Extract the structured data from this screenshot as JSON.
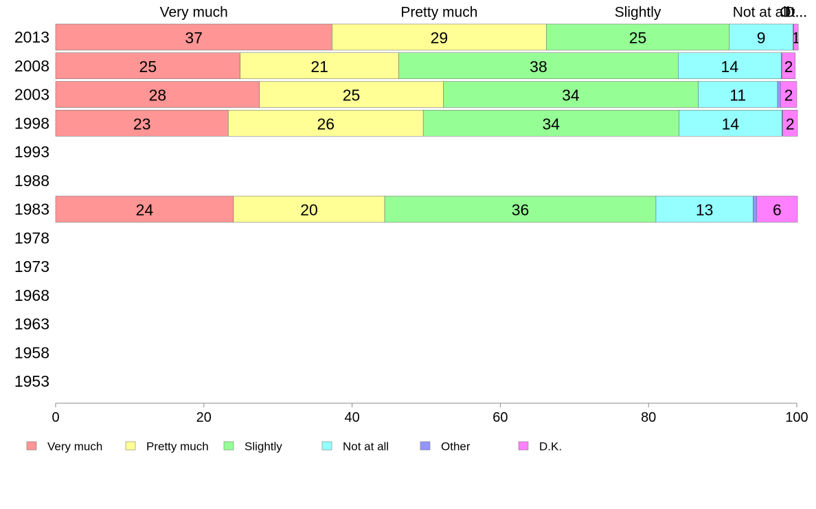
{
  "chart_data": {
    "type": "bar",
    "orientation": "horizontal",
    "stacked": true,
    "categories": [
      "2013",
      "2008",
      "2003",
      "1998",
      "1993",
      "1988",
      "1983",
      "1978",
      "1973",
      "1968",
      "1963",
      "1958",
      "1953"
    ],
    "series": [
      {
        "name": "Very much",
        "color": "#ff9595",
        "values": [
          37.3,
          24.9,
          27.5,
          23.3,
          null,
          null,
          24.0,
          null,
          null,
          null,
          null,
          null,
          null
        ]
      },
      {
        "name": "Pretty much",
        "color": "#ffff95",
        "values": [
          28.9,
          21.4,
          24.8,
          26.3,
          null,
          null,
          20.4,
          null,
          null,
          null,
          null,
          null,
          null
        ]
      },
      {
        "name": "Slightly",
        "color": "#95ff95",
        "values": [
          24.7,
          37.7,
          34.4,
          34.5,
          null,
          null,
          36.6,
          null,
          null,
          null,
          null,
          null,
          null
        ]
      },
      {
        "name": "Not at all",
        "color": "#95ffff",
        "values": [
          8.6,
          13.9,
          10.7,
          13.9,
          null,
          null,
          13.1,
          null,
          null,
          null,
          null,
          null,
          null
        ]
      },
      {
        "name": "Other",
        "color": "#9595ff",
        "values": [
          0.1,
          0.1,
          0.4,
          0.1,
          null,
          null,
          0.5,
          null,
          null,
          null,
          null,
          null,
          null
        ]
      },
      {
        "name": "D.K.",
        "color": "#ff80ff",
        "values": [
          0.6,
          1.8,
          2.2,
          2.0,
          null,
          null,
          5.5,
          null,
          null,
          null,
          null,
          null,
          null
        ]
      }
    ],
    "bar_labels": [
      [
        "37",
        "29",
        "25",
        "9",
        "",
        "1"
      ],
      [
        "25",
        "21",
        "38",
        "14",
        "",
        "2"
      ],
      [
        "28",
        "25",
        "34",
        "11",
        "",
        "2"
      ],
      [
        "23",
        "26",
        "34",
        "14",
        "",
        "2"
      ],
      [],
      [],
      [
        "24",
        "20",
        "36",
        "13",
        "",
        "6"
      ],
      [],
      [],
      [],
      [],
      [],
      []
    ],
    "top_labels": [
      "Very much",
      "Pretty much",
      "Slightly",
      "Not at all",
      "Ot...",
      "D..."
    ],
    "xlim": [
      0,
      100
    ],
    "xticks": [
      0,
      20,
      40,
      60,
      80,
      100
    ],
    "xlabel": "",
    "ylabel": "",
    "title": "",
    "grid": false,
    "legend": {
      "position": "bottom",
      "entries": [
        "Very much",
        "Pretty much",
        "Slightly",
        "Not at all",
        "Other",
        "D.K."
      ]
    }
  }
}
